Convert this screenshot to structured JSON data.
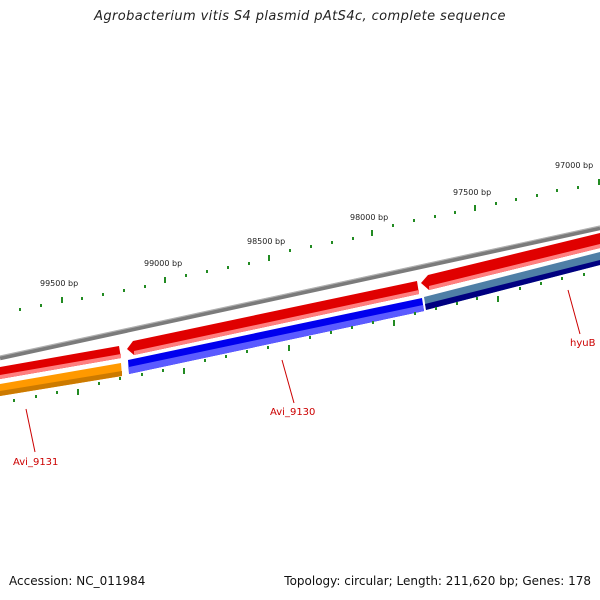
{
  "title": "Agrobacterium vitis S4 plasmid pAtS4c, complete sequence",
  "footer": {
    "accession": "Accession: NC_011984",
    "summary": "Topology: circular; Length: 211,620 bp; Genes: 178"
  },
  "bp_marks": [
    "97000 bp",
    "97500 bp",
    "98000 bp",
    "98500 bp",
    "99000 bp",
    "99500 bp"
  ],
  "genes": [
    {
      "name": "hyuB",
      "strand": "forward",
      "color": "#ff0000"
    },
    {
      "name": "Avi_9130",
      "strand": "forward",
      "color": "#ff0000"
    },
    {
      "name": "Avi_9131",
      "strand": "forward",
      "color": "#ff0000"
    },
    {
      "name": "hyuB",
      "strand": "cds",
      "color": "#4f7fa6"
    },
    {
      "name": "Avi_9130",
      "strand": "cds",
      "color": "#0000ff"
    },
    {
      "name": "Avi_9131",
      "strand": "cds",
      "color": "#ff8c00"
    }
  ],
  "colors": {
    "backbone": "#808080",
    "gene": "#ff0000",
    "cds_avi_9130": "#0000ff",
    "cds_hyub": "#4f7fa6",
    "cds_avi_9131": "#ff8c00",
    "tick": "#228b22",
    "label": "#cc0000"
  }
}
